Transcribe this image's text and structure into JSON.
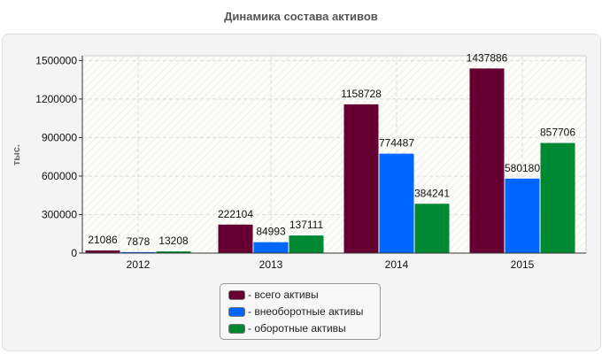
{
  "chart_data": {
    "type": "bar",
    "title": "Динамика состава активов",
    "ylabel": "тыс.",
    "xlabel": "",
    "categories": [
      "2012",
      "2013",
      "2014",
      "2015"
    ],
    "series": [
      {
        "name": "- всего активы",
        "color": "#660033",
        "values": [
          21086,
          222104,
          1158728,
          1437886
        ]
      },
      {
        "name": "- внеоборотные активы",
        "color": "#0066ff",
        "values": [
          7878,
          84993,
          774487,
          580180
        ]
      },
      {
        "name": "- оборотные активы",
        "color": "#008833",
        "values": [
          13208,
          137111,
          384241,
          857706
        ]
      }
    ],
    "ylim": [
      0,
      1537000
    ],
    "yticks": [
      "0",
      "300000",
      "600000",
      "900000",
      "1200000",
      "1500000"
    ],
    "grid": true,
    "legend_position": "bottom"
  }
}
